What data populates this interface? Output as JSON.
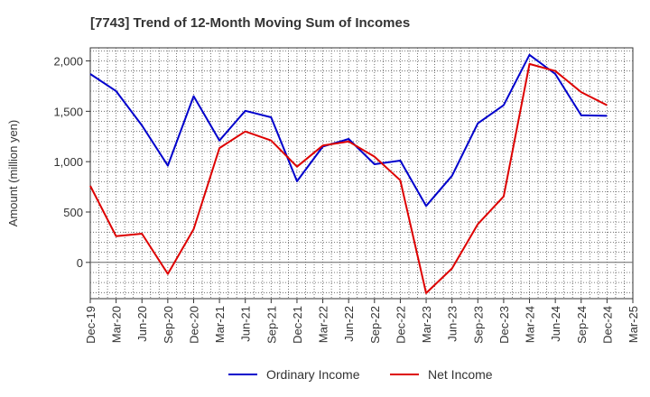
{
  "chart_data": {
    "type": "line",
    "title": "[7743]  Trend of 12-Month Moving Sum of Incomes",
    "xlabel": "",
    "ylabel": "Amount (million yen)",
    "ylim": [
      -360,
      2130
    ],
    "yticks": [
      0,
      500,
      1000,
      1500,
      2000
    ],
    "ytick_labels": [
      "0",
      "500",
      "1,000",
      "1,500",
      "2,000"
    ],
    "categories": [
      "Dec-19",
      "Mar-20",
      "Jun-20",
      "Sep-20",
      "Dec-20",
      "Mar-21",
      "Jun-21",
      "Sep-21",
      "Dec-21",
      "Mar-22",
      "Jun-22",
      "Sep-22",
      "Dec-22",
      "Mar-23",
      "Jun-23",
      "Sep-23",
      "Dec-23",
      "Mar-24",
      "Jun-24",
      "Sep-24",
      "Dec-24",
      "Mar-25"
    ],
    "grid": true,
    "legend_position": "bottom",
    "series": [
      {
        "name": "Ordinary Income",
        "color": "#0000cc",
        "values": [
          1870,
          1700,
          1360,
          960,
          1650,
          1210,
          1505,
          1440,
          805,
          1150,
          1225,
          975,
          1010,
          560,
          860,
          1380,
          1560,
          2060,
          1870,
          1460,
          1455,
          null
        ]
      },
      {
        "name": "Net Income",
        "color": "#dd0000",
        "values": [
          760,
          260,
          285,
          -115,
          330,
          1135,
          1300,
          1210,
          950,
          1160,
          1200,
          1050,
          815,
          -305,
          -60,
          380,
          655,
          1970,
          1900,
          1690,
          1560,
          null
        ]
      }
    ]
  }
}
